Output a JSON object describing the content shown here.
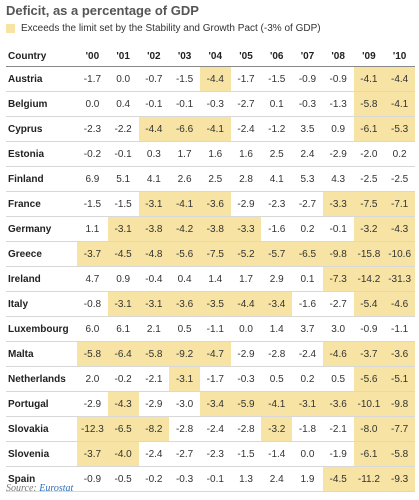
{
  "chart_data": {
    "type": "table",
    "title": "Deficit, as a percentage of GDP",
    "legend": [
      {
        "label": "Exceeds the limit set by the Stability and Growth Pact (-3% of GDP)",
        "color": "#f7e3a3"
      }
    ],
    "column_header": "Country",
    "years": [
      "'00",
      "'01",
      "'02",
      "'03",
      "'04",
      "'05",
      "'06",
      "'07",
      "'08",
      "'09",
      "'10"
    ],
    "threshold": -3,
    "rows": [
      {
        "country": "Austria",
        "values": [
          -1.7,
          0.0,
          -0.7,
          -1.5,
          -4.4,
          -1.7,
          -1.5,
          -0.9,
          -0.9,
          -4.1,
          -4.4
        ]
      },
      {
        "country": "Belgium",
        "values": [
          0.0,
          0.4,
          -0.1,
          -0.1,
          -0.3,
          -2.7,
          0.1,
          -0.3,
          -1.3,
          -5.8,
          -4.1
        ]
      },
      {
        "country": "Cyprus",
        "values": [
          -2.3,
          -2.2,
          -4.4,
          -6.6,
          -4.1,
          -2.4,
          -1.2,
          3.5,
          0.9,
          -6.1,
          -5.3
        ]
      },
      {
        "country": "Estonia",
        "values": [
          -0.2,
          -0.1,
          0.3,
          1.7,
          1.6,
          1.6,
          2.5,
          2.4,
          -2.9,
          -2.0,
          0.2
        ]
      },
      {
        "country": "Finland",
        "values": [
          6.9,
          5.1,
          4.1,
          2.6,
          2.5,
          2.8,
          4.1,
          5.3,
          4.3,
          -2.5,
          -2.5
        ]
      },
      {
        "country": "France",
        "values": [
          -1.5,
          -1.5,
          -3.1,
          -4.1,
          -3.6,
          -2.9,
          -2.3,
          -2.7,
          -3.3,
          -7.5,
          -7.1
        ]
      },
      {
        "country": "Germany",
        "values": [
          1.1,
          -3.1,
          -3.8,
          -4.2,
          -3.8,
          -3.3,
          -1.6,
          0.2,
          -0.1,
          -3.2,
          -4.3
        ]
      },
      {
        "country": "Greece",
        "values": [
          -3.7,
          -4.5,
          -4.8,
          -5.6,
          -7.5,
          -5.2,
          -5.7,
          -6.5,
          -9.8,
          -15.8,
          -10.6
        ]
      },
      {
        "country": "Ireland",
        "values": [
          4.7,
          0.9,
          -0.4,
          0.4,
          1.4,
          1.7,
          2.9,
          0.1,
          -7.3,
          -14.2,
          -31.3
        ]
      },
      {
        "country": "Italy",
        "values": [
          -0.8,
          -3.1,
          -3.1,
          -3.6,
          -3.5,
          -4.4,
          -3.4,
          -1.6,
          -2.7,
          -5.4,
          -4.6
        ]
      },
      {
        "country": "Luxembourg",
        "values": [
          6.0,
          6.1,
          2.1,
          0.5,
          -1.1,
          0.0,
          1.4,
          3.7,
          3.0,
          -0.9,
          -1.1
        ]
      },
      {
        "country": "Malta",
        "values": [
          -5.8,
          -6.4,
          -5.8,
          -9.2,
          -4.7,
          -2.9,
          -2.8,
          -2.4,
          -4.6,
          -3.7,
          -3.6
        ]
      },
      {
        "country": "Netherlands",
        "values": [
          2.0,
          -0.2,
          -2.1,
          -3.1,
          -1.7,
          -0.3,
          0.5,
          0.2,
          0.5,
          -5.6,
          -5.1
        ]
      },
      {
        "country": "Portugal",
        "values": [
          -2.9,
          -4.3,
          -2.9,
          -3.0,
          -3.4,
          -5.9,
          -4.1,
          -3.1,
          -3.6,
          -10.1,
          -9.8
        ]
      },
      {
        "country": "Slovakia",
        "values": [
          -12.3,
          -6.5,
          -8.2,
          -2.8,
          -2.4,
          -2.8,
          -3.2,
          -1.8,
          -2.1,
          -8.0,
          -7.7
        ]
      },
      {
        "country": "Slovenia",
        "values": [
          -3.7,
          -4.0,
          -2.4,
          -2.7,
          -2.3,
          -1.5,
          -1.4,
          0.0,
          -1.9,
          -6.1,
          -5.8
        ]
      },
      {
        "country": "Spain",
        "values": [
          -0.9,
          -0.5,
          -0.2,
          -0.3,
          -0.1,
          1.3,
          2.4,
          1.9,
          -4.5,
          -11.2,
          -9.3
        ]
      }
    ],
    "highlighted": {
      "Austria": [
        4,
        9,
        10
      ],
      "Belgium": [
        9,
        10
      ],
      "Cyprus": [
        2,
        3,
        4,
        9,
        10
      ],
      "Estonia": [],
      "Finland": [],
      "France": [
        2,
        3,
        4,
        8,
        9,
        10
      ],
      "Germany": [
        1,
        2,
        3,
        4,
        5,
        9,
        10
      ],
      "Greece": [
        0,
        1,
        2,
        3,
        4,
        5,
        6,
        7,
        8,
        9,
        10
      ],
      "Ireland": [
        8,
        9,
        10
      ],
      "Italy": [
        1,
        2,
        3,
        4,
        5,
        6,
        9,
        10
      ],
      "Luxembourg": [],
      "Malta": [
        0,
        1,
        2,
        3,
        4,
        8,
        9,
        10
      ],
      "Netherlands": [
        3,
        9,
        10
      ],
      "Portugal": [
        1,
        4,
        5,
        6,
        7,
        8,
        9,
        10
      ],
      "Slovakia": [
        0,
        1,
        2,
        6,
        9,
        10
      ],
      "Slovenia": [
        0,
        1,
        9,
        10
      ],
      "Spain": [
        8,
        9,
        10
      ]
    }
  },
  "source": {
    "label": "Source: ",
    "name": "Eurostat"
  }
}
